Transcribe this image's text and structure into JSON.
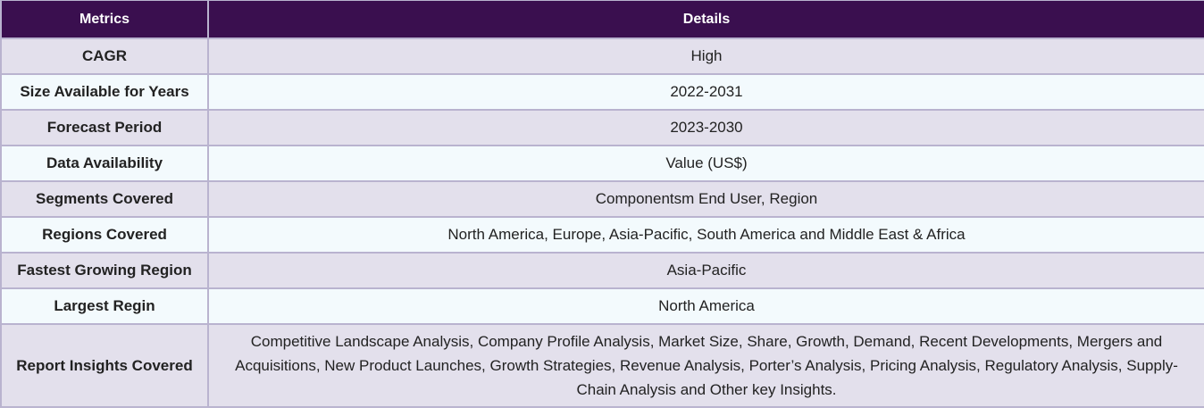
{
  "table": {
    "headers": [
      "Metrics",
      "Details"
    ],
    "rows": [
      {
        "metric": "CAGR",
        "detail": "High"
      },
      {
        "metric": "Size Available for Years",
        "detail": "2022-2031"
      },
      {
        "metric": "Forecast Period",
        "detail": "2023-2030"
      },
      {
        "metric": "Data Availability",
        "detail": "Value (US$)"
      },
      {
        "metric": "Segments Covered",
        "detail": "Componentsm End User, Region"
      },
      {
        "metric": "Regions Covered",
        "detail": "North America, Europe, Asia-Pacific, South America and Middle East & Africa"
      },
      {
        "metric": "Fastest Growing Region",
        "detail": "Asia-Pacific"
      },
      {
        "metric": "Largest Regin",
        "detail": "North America"
      },
      {
        "metric": "Report Insights Covered",
        "detail": "Competitive Landscape Analysis, Company Profile Analysis, Market Size, Share, Growth, Demand, Recent Developments, Mergers and Acquisitions, New Product Launches, Growth Strategies, Revenue Analysis, Porter’s Analysis, Pricing Analysis, Regulatory Analysis, Supply-Chain Analysis and Other key Insights."
      }
    ]
  },
  "colors": {
    "header_bg": "#3a0f4f",
    "row_odd_bg": "#e3e0ec",
    "row_even_bg": "#f3fafd",
    "border": "#b9b3cf"
  }
}
